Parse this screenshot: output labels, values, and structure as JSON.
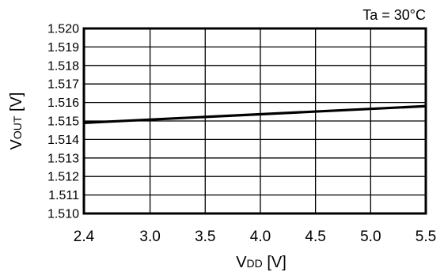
{
  "chart_data": {
    "type": "line",
    "annotation": "Ta = 30°C",
    "xlabel": {
      "main": "V",
      "sub": "DD",
      "unit": " [V]"
    },
    "ylabel": {
      "main": "V",
      "sub": "OUT",
      "unit": " [V]"
    },
    "xlim": [
      2.4,
      5.5
    ],
    "ylim": [
      1.51,
      1.52
    ],
    "x_ticks": [
      2.4,
      3.0,
      3.5,
      4.0,
      4.5,
      5.0,
      5.5
    ],
    "x_tick_labels": [
      "2.4",
      "3.0",
      "3.5",
      "4.0",
      "4.5",
      "5.0",
      "5.5"
    ],
    "y_ticks": [
      1.51,
      1.511,
      1.512,
      1.513,
      1.514,
      1.515,
      1.516,
      1.517,
      1.518,
      1.519,
      1.52
    ],
    "y_tick_labels": [
      "1.510",
      "1.511",
      "1.512",
      "1.513",
      "1.514",
      "1.515",
      "1.516",
      "1.517",
      "1.518",
      "1.519",
      "1.520"
    ],
    "grid": true,
    "series": [
      {
        "x": [
          2.4,
          5.5
        ],
        "y": [
          1.5149,
          1.5158
        ]
      }
    ]
  }
}
